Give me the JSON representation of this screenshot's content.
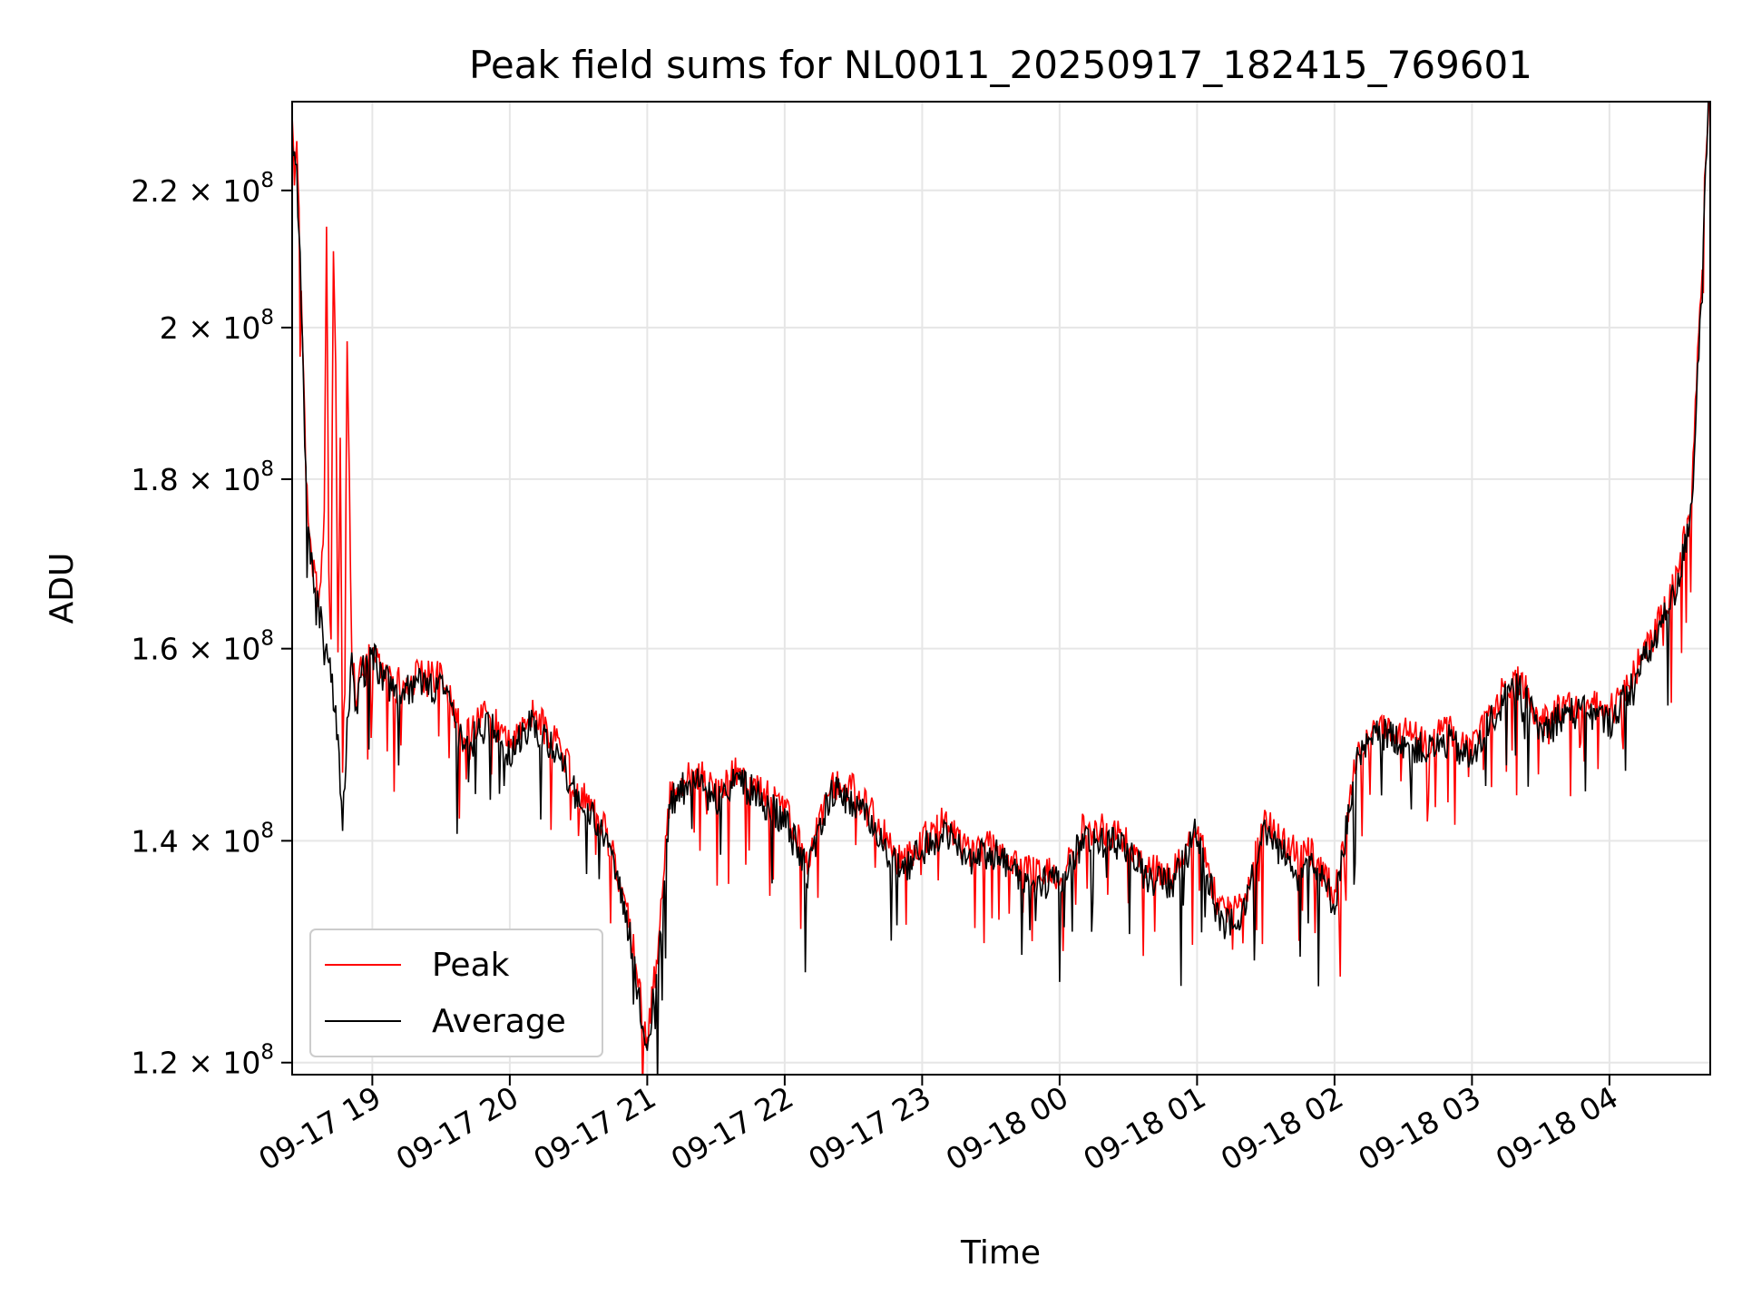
{
  "chart_data": {
    "type": "line",
    "title": "Peak field sums for NL0011_20250917_182415_769601",
    "xlabel": "Time",
    "ylabel": "ADU",
    "y_scale": "log",
    "ylim": [
      119000000,
      234000000
    ],
    "xlim": [
      "2025-09-17 18:25",
      "2025-09-18 04:44"
    ],
    "grid": true,
    "legend_position": "lower-left",
    "x_ticks": [
      {
        "t": "2025-09-17 19:00",
        "label": "09-17 19"
      },
      {
        "t": "2025-09-17 20:00",
        "label": "09-17 20"
      },
      {
        "t": "2025-09-17 21:00",
        "label": "09-17 21"
      },
      {
        "t": "2025-09-17 22:00",
        "label": "09-17 22"
      },
      {
        "t": "2025-09-17 23:00",
        "label": "09-17 23"
      },
      {
        "t": "2025-09-18 00:00",
        "label": "09-18 00"
      },
      {
        "t": "2025-09-18 01:00",
        "label": "09-18 01"
      },
      {
        "t": "2025-09-18 02:00",
        "label": "09-18 02"
      },
      {
        "t": "2025-09-18 03:00",
        "label": "09-18 03"
      },
      {
        "t": "2025-09-18 04:00",
        "label": "09-18 04"
      }
    ],
    "y_ticks": [
      {
        "value": 120000000,
        "mant": "1.2",
        "exp": "8"
      },
      {
        "value": 140000000,
        "mant": "1.4",
        "exp": "8"
      },
      {
        "value": 160000000,
        "mant": "1.6",
        "exp": "8"
      },
      {
        "value": 180000000,
        "mant": "1.8",
        "exp": "8"
      },
      {
        "value": 200000000,
        "mant": "2",
        "exp": "8"
      },
      {
        "value": 220000000,
        "mant": "2.2",
        "exp": "8"
      }
    ],
    "series": [
      {
        "name": "Peak",
        "color": "#ff0000",
        "x": [
          "2025-09-17 18:25",
          "2025-09-17 18:27",
          "2025-09-17 18:29",
          "2025-09-17 18:31",
          "2025-09-17 18:33",
          "2025-09-17 18:35",
          "2025-09-17 18:37",
          "2025-09-17 18:39",
          "2025-09-17 18:40",
          "2025-09-17 18:41",
          "2025-09-17 18:42",
          "2025-09-17 18:43",
          "2025-09-17 18:44",
          "2025-09-17 18:45",
          "2025-09-17 18:46",
          "2025-09-17 18:47",
          "2025-09-17 18:48",
          "2025-09-17 18:49",
          "2025-09-17 18:51",
          "2025-09-17 18:53",
          "2025-09-17 18:55",
          "2025-09-17 19:00",
          "2025-09-17 19:10",
          "2025-09-17 19:20",
          "2025-09-17 19:30",
          "2025-09-17 19:40",
          "2025-09-17 19:50",
          "2025-09-17 20:00",
          "2025-09-17 20:10",
          "2025-09-17 20:20",
          "2025-09-17 20:30",
          "2025-09-17 20:40",
          "2025-09-17 20:50",
          "2025-09-17 21:00",
          "2025-09-17 21:05",
          "2025-09-17 21:10",
          "2025-09-17 21:20",
          "2025-09-17 21:30",
          "2025-09-17 21:40",
          "2025-09-17 21:50",
          "2025-09-17 22:00",
          "2025-09-17 22:10",
          "2025-09-17 22:20",
          "2025-09-17 22:30",
          "2025-09-17 22:40",
          "2025-09-17 22:50",
          "2025-09-17 23:00",
          "2025-09-17 23:10",
          "2025-09-17 23:20",
          "2025-09-17 23:30",
          "2025-09-17 23:40",
          "2025-09-17 23:50",
          "2025-09-18 00:00",
          "2025-09-18 00:10",
          "2025-09-18 00:20",
          "2025-09-18 00:30",
          "2025-09-18 00:40",
          "2025-09-18 00:50",
          "2025-09-18 01:00",
          "2025-09-18 01:10",
          "2025-09-18 01:20",
          "2025-09-18 01:30",
          "2025-09-18 01:40",
          "2025-09-18 01:50",
          "2025-09-18 02:00",
          "2025-09-18 02:10",
          "2025-09-18 02:20",
          "2025-09-18 02:30",
          "2025-09-18 02:40",
          "2025-09-18 02:50",
          "2025-09-18 03:00",
          "2025-09-18 03:10",
          "2025-09-18 03:20",
          "2025-09-18 03:30",
          "2025-09-18 03:40",
          "2025-09-18 03:50",
          "2025-09-18 04:00",
          "2025-09-18 04:10",
          "2025-09-18 04:20",
          "2025-09-18 04:30",
          "2025-09-18 04:36",
          "2025-09-18 04:40",
          "2025-09-18 04:42",
          "2025-09-18 04:44"
        ],
        "y": [
          230000000,
          225000000,
          205000000,
          180000000,
          172000000,
          168000000,
          165000000,
          175000000,
          213000000,
          170000000,
          160000000,
          213000000,
          196000000,
          158000000,
          186000000,
          148000000,
          155000000,
          196000000,
          160000000,
          155000000,
          158000000,
          160000000,
          156000000,
          157000000,
          157000000,
          150000000,
          153000000,
          150000000,
          153000000,
          150000000,
          145000000,
          142000000,
          135000000,
          122000000,
          130000000,
          145000000,
          147000000,
          145000000,
          147000000,
          145000000,
          143000000,
          138000000,
          146000000,
          145000000,
          142000000,
          138000000,
          140000000,
          142000000,
          139000000,
          140000000,
          138000000,
          137000000,
          137000000,
          141000000,
          141000000,
          140000000,
          137000000,
          137000000,
          142000000,
          133000000,
          134000000,
          142000000,
          139000000,
          139000000,
          135000000,
          149000000,
          152000000,
          151000000,
          150000000,
          151000000,
          149000000,
          154000000,
          157000000,
          152000000,
          154000000,
          154000000,
          153000000,
          157000000,
          162000000,
          168000000,
          178000000,
          205000000,
          225000000,
          240000000
        ]
      },
      {
        "name": "Average",
        "color": "#000000",
        "x": [
          "2025-09-17 18:25",
          "2025-09-17 18:27",
          "2025-09-17 18:29",
          "2025-09-17 18:31",
          "2025-09-17 18:33",
          "2025-09-17 18:35",
          "2025-09-17 18:37",
          "2025-09-17 18:39",
          "2025-09-17 18:41",
          "2025-09-17 18:43",
          "2025-09-17 18:45",
          "2025-09-17 18:47",
          "2025-09-17 18:49",
          "2025-09-17 18:51",
          "2025-09-17 18:53",
          "2025-09-17 18:55",
          "2025-09-17 19:00",
          "2025-09-17 19:10",
          "2025-09-17 19:20",
          "2025-09-17 19:30",
          "2025-09-17 19:40",
          "2025-09-17 19:50",
          "2025-09-17 20:00",
          "2025-09-17 20:10",
          "2025-09-17 20:20",
          "2025-09-17 20:30",
          "2025-09-17 20:40",
          "2025-09-17 20:50",
          "2025-09-17 21:00",
          "2025-09-17 21:05",
          "2025-09-17 21:10",
          "2025-09-17 21:20",
          "2025-09-17 21:30",
          "2025-09-17 21:40",
          "2025-09-17 21:50",
          "2025-09-17 22:00",
          "2025-09-17 22:10",
          "2025-09-17 22:20",
          "2025-09-17 22:30",
          "2025-09-17 22:40",
          "2025-09-17 22:50",
          "2025-09-17 23:00",
          "2025-09-17 23:10",
          "2025-09-17 23:20",
          "2025-09-17 23:30",
          "2025-09-17 23:40",
          "2025-09-17 23:50",
          "2025-09-18 00:00",
          "2025-09-18 00:10",
          "2025-09-18 00:20",
          "2025-09-18 00:30",
          "2025-09-18 00:40",
          "2025-09-18 00:50",
          "2025-09-18 01:00",
          "2025-09-18 01:10",
          "2025-09-18 01:20",
          "2025-09-18 01:30",
          "2025-09-18 01:40",
          "2025-09-18 01:50",
          "2025-09-18 02:00",
          "2025-09-18 02:10",
          "2025-09-18 02:20",
          "2025-09-18 02:30",
          "2025-09-18 02:40",
          "2025-09-18 02:50",
          "2025-09-18 03:00",
          "2025-09-18 03:10",
          "2025-09-18 03:20",
          "2025-09-18 03:30",
          "2025-09-18 03:40",
          "2025-09-18 03:50",
          "2025-09-18 04:00",
          "2025-09-18 04:10",
          "2025-09-18 04:20",
          "2025-09-18 04:30",
          "2025-09-18 04:36",
          "2025-09-18 04:40",
          "2025-09-18 04:42",
          "2025-09-18 04:44"
        ],
        "y": [
          228000000,
          223000000,
          204000000,
          180000000,
          171000000,
          167000000,
          164000000,
          160000000,
          158000000,
          155000000,
          150000000,
          141000000,
          152000000,
          158000000,
          154000000,
          157000000,
          159000000,
          155000000,
          156000000,
          156000000,
          149000000,
          152000000,
          149000000,
          152000000,
          149000000,
          144000000,
          141000000,
          134000000,
          121000000,
          129000000,
          144000000,
          146000000,
          144000000,
          146000000,
          144000000,
          142000000,
          137000000,
          145000000,
          144000000,
          141000000,
          137000000,
          139000000,
          141000000,
          138000000,
          139000000,
          137000000,
          136000000,
          136000000,
          140000000,
          140000000,
          139000000,
          136000000,
          136000000,
          141000000,
          132000000,
          133000000,
          141000000,
          138000000,
          138000000,
          134000000,
          148000000,
          151000000,
          150000000,
          149000000,
          150000000,
          148000000,
          153000000,
          156000000,
          151000000,
          153000000,
          153000000,
          152000000,
          156000000,
          161000000,
          167000000,
          177000000,
          204000000,
          224000000,
          240000000
        ]
      }
    ]
  }
}
